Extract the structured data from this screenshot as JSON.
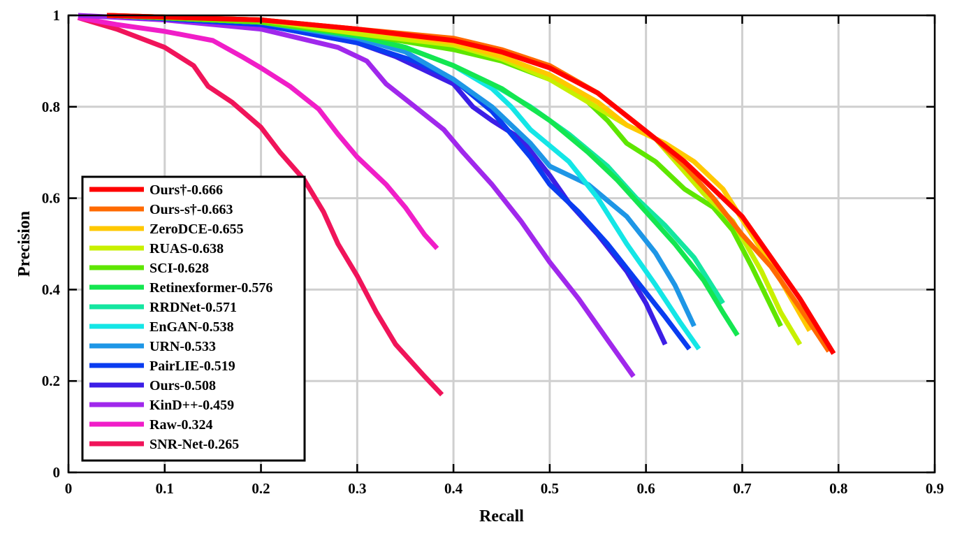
{
  "chart_data": {
    "type": "line",
    "title": "",
    "xlabel": "Recall",
    "ylabel": "Precision",
    "xlim": [
      0,
      0.9
    ],
    "ylim": [
      0,
      1
    ],
    "grid": true,
    "legend_position": "bottom-left",
    "xticks": [
      "0",
      "0.1",
      "0.2",
      "0.3",
      "0.4",
      "0.5",
      "0.6",
      "0.7",
      "0.8",
      "0.9"
    ],
    "yticks": [
      "0",
      "0.2",
      "0.4",
      "0.6",
      "0.8",
      "1"
    ],
    "series": [
      {
        "name": "Ours†-0.666",
        "color": "#ff0000",
        "points": [
          [
            0.04,
            1.0
          ],
          [
            0.2,
            0.99
          ],
          [
            0.3,
            0.97
          ],
          [
            0.4,
            0.945
          ],
          [
            0.45,
            0.92
          ],
          [
            0.5,
            0.885
          ],
          [
            0.55,
            0.83
          ],
          [
            0.58,
            0.78
          ],
          [
            0.61,
            0.73
          ],
          [
            0.64,
            0.68
          ],
          [
            0.67,
            0.62
          ],
          [
            0.7,
            0.56
          ],
          [
            0.73,
            0.47
          ],
          [
            0.76,
            0.38
          ],
          [
            0.795,
            0.26
          ]
        ]
      },
      {
        "name": "Ours-s†-0.663",
        "color": "#ff6a00",
        "points": [
          [
            0.04,
            1.0
          ],
          [
            0.2,
            0.99
          ],
          [
            0.3,
            0.97
          ],
          [
            0.4,
            0.95
          ],
          [
            0.45,
            0.925
          ],
          [
            0.5,
            0.89
          ],
          [
            0.55,
            0.83
          ],
          [
            0.58,
            0.78
          ],
          [
            0.61,
            0.73
          ],
          [
            0.64,
            0.67
          ],
          [
            0.67,
            0.6
          ],
          [
            0.7,
            0.52
          ],
          [
            0.73,
            0.45
          ],
          [
            0.76,
            0.36
          ],
          [
            0.79,
            0.265
          ]
        ]
      },
      {
        "name": "ZeroDCE-0.655",
        "color": "#ffc800",
        "points": [
          [
            0.04,
            1.0
          ],
          [
            0.2,
            0.99
          ],
          [
            0.3,
            0.97
          ],
          [
            0.4,
            0.94
          ],
          [
            0.45,
            0.91
          ],
          [
            0.5,
            0.87
          ],
          [
            0.55,
            0.81
          ],
          [
            0.58,
            0.76
          ],
          [
            0.62,
            0.72
          ],
          [
            0.65,
            0.68
          ],
          [
            0.68,
            0.62
          ],
          [
            0.71,
            0.52
          ],
          [
            0.74,
            0.42
          ],
          [
            0.77,
            0.31
          ]
        ]
      },
      {
        "name": "RUAS-0.638",
        "color": "#c8f000",
        "points": [
          [
            0.04,
            1.0
          ],
          [
            0.2,
            0.99
          ],
          [
            0.3,
            0.96
          ],
          [
            0.4,
            0.935
          ],
          [
            0.45,
            0.905
          ],
          [
            0.5,
            0.86
          ],
          [
            0.54,
            0.81
          ],
          [
            0.58,
            0.76
          ],
          [
            0.61,
            0.73
          ],
          [
            0.635,
            0.67
          ],
          [
            0.66,
            0.61
          ],
          [
            0.69,
            0.55
          ],
          [
            0.72,
            0.44
          ],
          [
            0.74,
            0.35
          ],
          [
            0.76,
            0.28
          ]
        ]
      },
      {
        "name": "SCI-0.628",
        "color": "#5ee600",
        "points": [
          [
            0.04,
            1.0
          ],
          [
            0.2,
            0.985
          ],
          [
            0.3,
            0.96
          ],
          [
            0.4,
            0.925
          ],
          [
            0.45,
            0.9
          ],
          [
            0.5,
            0.86
          ],
          [
            0.53,
            0.83
          ],
          [
            0.56,
            0.77
          ],
          [
            0.58,
            0.72
          ],
          [
            0.61,
            0.68
          ],
          [
            0.64,
            0.62
          ],
          [
            0.67,
            0.58
          ],
          [
            0.69,
            0.53
          ],
          [
            0.71,
            0.45
          ],
          [
            0.74,
            0.32
          ]
        ]
      },
      {
        "name": "Retinexformer-0.576",
        "color": "#14e650",
        "points": [
          [
            0.04,
            1.0
          ],
          [
            0.2,
            0.985
          ],
          [
            0.3,
            0.955
          ],
          [
            0.35,
            0.93
          ],
          [
            0.4,
            0.89
          ],
          [
            0.45,
            0.84
          ],
          [
            0.5,
            0.77
          ],
          [
            0.54,
            0.7
          ],
          [
            0.57,
            0.64
          ],
          [
            0.6,
            0.57
          ],
          [
            0.63,
            0.5
          ],
          [
            0.66,
            0.42
          ],
          [
            0.68,
            0.35
          ],
          [
            0.695,
            0.3
          ]
        ]
      },
      {
        "name": "RRDNet-0.571",
        "color": "#14e6a0",
        "points": [
          [
            0.04,
            1.0
          ],
          [
            0.2,
            0.985
          ],
          [
            0.3,
            0.955
          ],
          [
            0.35,
            0.93
          ],
          [
            0.4,
            0.89
          ],
          [
            0.44,
            0.85
          ],
          [
            0.48,
            0.8
          ],
          [
            0.52,
            0.74
          ],
          [
            0.56,
            0.67
          ],
          [
            0.59,
            0.6
          ],
          [
            0.62,
            0.54
          ],
          [
            0.65,
            0.47
          ],
          [
            0.68,
            0.37
          ]
        ]
      },
      {
        "name": "EnGAN-0.538",
        "color": "#14e6e6",
        "points": [
          [
            0.04,
            1.0
          ],
          [
            0.2,
            0.985
          ],
          [
            0.3,
            0.955
          ],
          [
            0.35,
            0.93
          ],
          [
            0.4,
            0.89
          ],
          [
            0.44,
            0.84
          ],
          [
            0.46,
            0.8
          ],
          [
            0.48,
            0.75
          ],
          [
            0.52,
            0.68
          ],
          [
            0.55,
            0.6
          ],
          [
            0.58,
            0.5
          ],
          [
            0.61,
            0.41
          ],
          [
            0.635,
            0.33
          ],
          [
            0.655,
            0.27
          ]
        ]
      },
      {
        "name": "URN-0.533",
        "color": "#1e96e6",
        "points": [
          [
            0.04,
            1.0
          ],
          [
            0.2,
            0.985
          ],
          [
            0.3,
            0.95
          ],
          [
            0.35,
            0.92
          ],
          [
            0.4,
            0.86
          ],
          [
            0.44,
            0.8
          ],
          [
            0.48,
            0.72
          ],
          [
            0.5,
            0.67
          ],
          [
            0.54,
            0.63
          ],
          [
            0.58,
            0.56
          ],
          [
            0.61,
            0.48
          ],
          [
            0.63,
            0.41
          ],
          [
            0.65,
            0.32
          ]
        ]
      },
      {
        "name": "PairLIE-0.519",
        "color": "#0a3cf0",
        "points": [
          [
            0.04,
            1.0
          ],
          [
            0.2,
            0.98
          ],
          [
            0.3,
            0.94
          ],
          [
            0.36,
            0.9
          ],
          [
            0.4,
            0.86
          ],
          [
            0.44,
            0.79
          ],
          [
            0.46,
            0.74
          ],
          [
            0.48,
            0.69
          ],
          [
            0.5,
            0.63
          ],
          [
            0.53,
            0.57
          ],
          [
            0.56,
            0.5
          ],
          [
            0.59,
            0.42
          ],
          [
            0.62,
            0.34
          ],
          [
            0.645,
            0.27
          ]
        ]
      },
      {
        "name": "Ours-0.508",
        "color": "#3c1ee6",
        "points": [
          [
            0.04,
            1.0
          ],
          [
            0.2,
            0.98
          ],
          [
            0.3,
            0.94
          ],
          [
            0.34,
            0.91
          ],
          [
            0.37,
            0.88
          ],
          [
            0.4,
            0.85
          ],
          [
            0.42,
            0.8
          ],
          [
            0.44,
            0.77
          ],
          [
            0.47,
            0.73
          ],
          [
            0.5,
            0.65
          ],
          [
            0.52,
            0.59
          ],
          [
            0.55,
            0.52
          ],
          [
            0.58,
            0.44
          ],
          [
            0.6,
            0.37
          ],
          [
            0.62,
            0.28
          ]
        ]
      },
      {
        "name": "KinD++-0.459",
        "color": "#a028ec",
        "points": [
          [
            0.01,
            1.0
          ],
          [
            0.1,
            0.99
          ],
          [
            0.2,
            0.97
          ],
          [
            0.28,
            0.93
          ],
          [
            0.31,
            0.9
          ],
          [
            0.33,
            0.85
          ],
          [
            0.36,
            0.8
          ],
          [
            0.39,
            0.75
          ],
          [
            0.41,
            0.7
          ],
          [
            0.44,
            0.63
          ],
          [
            0.47,
            0.55
          ],
          [
            0.5,
            0.46
          ],
          [
            0.53,
            0.38
          ],
          [
            0.56,
            0.29
          ],
          [
            0.587,
            0.21
          ]
        ]
      },
      {
        "name": "Raw-0.324",
        "color": "#f01ec8",
        "points": [
          [
            0.01,
            0.995
          ],
          [
            0.05,
            0.98
          ],
          [
            0.1,
            0.965
          ],
          [
            0.15,
            0.945
          ],
          [
            0.18,
            0.91
          ],
          [
            0.2,
            0.885
          ],
          [
            0.23,
            0.845
          ],
          [
            0.26,
            0.795
          ],
          [
            0.28,
            0.74
          ],
          [
            0.3,
            0.69
          ],
          [
            0.33,
            0.63
          ],
          [
            0.35,
            0.58
          ],
          [
            0.37,
            0.52
          ],
          [
            0.383,
            0.49
          ]
        ]
      },
      {
        "name": "SNR-Net-0.265",
        "color": "#f0145a",
        "points": [
          [
            0.01,
            0.995
          ],
          [
            0.05,
            0.97
          ],
          [
            0.1,
            0.93
          ],
          [
            0.13,
            0.89
          ],
          [
            0.145,
            0.845
          ],
          [
            0.17,
            0.81
          ],
          [
            0.2,
            0.755
          ],
          [
            0.22,
            0.7
          ],
          [
            0.245,
            0.64
          ],
          [
            0.265,
            0.57
          ],
          [
            0.28,
            0.5
          ],
          [
            0.3,
            0.43
          ],
          [
            0.32,
            0.35
          ],
          [
            0.34,
            0.28
          ],
          [
            0.37,
            0.21
          ],
          [
            0.388,
            0.17
          ]
        ]
      }
    ]
  }
}
